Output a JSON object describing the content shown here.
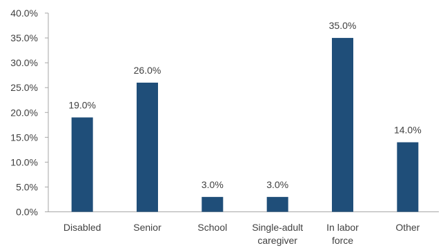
{
  "chart_data": {
    "type": "bar",
    "categories": [
      [
        "Disabled"
      ],
      [
        "Senior"
      ],
      [
        "School"
      ],
      [
        "Single-adult",
        "caregiver"
      ],
      [
        "In labor",
        "force"
      ],
      [
        "Other"
      ]
    ],
    "values": [
      19.0,
      26.0,
      3.0,
      3.0,
      35.0,
      14.0
    ],
    "data_labels": [
      "19.0%",
      "26.0%",
      "3.0%",
      "3.0%",
      "35.0%",
      "14.0%"
    ],
    "ylim": [
      0,
      40
    ],
    "yticks": [
      0,
      5,
      10,
      15,
      20,
      25,
      30,
      35,
      40
    ],
    "ytick_labels": [
      "0.0%",
      "5.0%",
      "10.0%",
      "15.0%",
      "20.0%",
      "25.0%",
      "30.0%",
      "35.0%",
      "40.0%"
    ],
    "bar_color": "#1f4e79",
    "axis_color": "#a6a6a6",
    "title": "",
    "xlabel": "",
    "ylabel": "",
    "grid": false,
    "legend": "none"
  }
}
